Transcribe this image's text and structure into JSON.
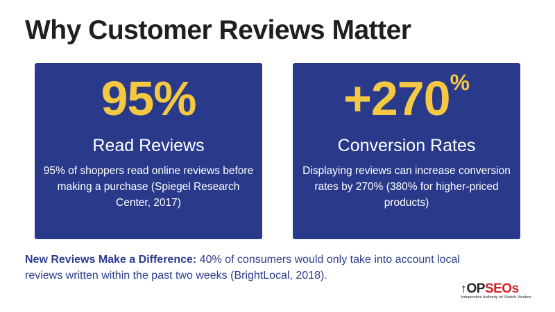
{
  "title": "Why Customer Reviews Matter",
  "cards": [
    {
      "stat": "95%",
      "stat_suffix": "",
      "heading": "Read Reviews",
      "description": "95% of shoppers read online reviews before making a purchase (Spiegel Research Center, 2017)"
    },
    {
      "stat": "+270",
      "stat_suffix": "%",
      "heading": "Conversion Rates",
      "description": "Displaying reviews can increase conversion rates by 270% (380% for higher-priced products)"
    }
  ],
  "footnote": {
    "lead": "New Reviews Make a Difference:",
    "text": " 40% of consumers would only take into account local reviews written within the past two weeks (BrightLocal, 2018)."
  },
  "logo": {
    "part1": "OP",
    "part2": "SEOs",
    "tagline": "Independent Authority on Search Vendors"
  },
  "colors": {
    "card_bg": "#293a8a",
    "stat": "#f5c842",
    "footnote": "#2b3c8c",
    "logo_accent": "#d32027"
  }
}
